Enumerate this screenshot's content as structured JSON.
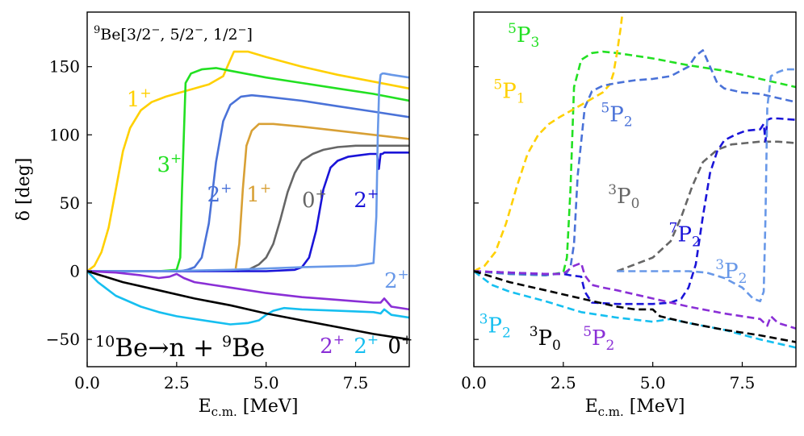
{
  "chart_data": [
    {
      "type": "line",
      "panel": "left",
      "title": "",
      "xlabel": "E",
      "xlabel_sub": "c.m.",
      "xlabel_unit": " [MeV]",
      "ylabel": "δ [deg]",
      "xlim": [
        0,
        9
      ],
      "ylim": [
        -70,
        190
      ],
      "xticks": [
        0,
        2.5,
        5,
        7.5
      ],
      "xtick_labels": [
        "0.0",
        "2.5",
        "5.0",
        "7.5"
      ],
      "yticks": [
        -50,
        0,
        50,
        100,
        150
      ],
      "ytick_labels": [
        "−50",
        "0",
        "50",
        "100",
        "150"
      ],
      "corner_text": {
        "sup": "9",
        "main": "Be[3/2",
        "rest": [
          "−",
          ", 5/2",
          "−",
          ", 1/2",
          "−",
          "]"
        ]
      },
      "reaction": {
        "pre_sup": "10",
        "pre": "Be",
        "arrow": "→",
        "mid": "n + ",
        "post_sup": "9",
        "post": "Be"
      },
      "series": [
        {
          "name": "1+ (yellow)",
          "label": "1",
          "label_sup": "+",
          "color": "#ffd000",
          "dash": false,
          "lx": 1.1,
          "ly": 121,
          "x": [
            0,
            0.2,
            0.4,
            0.6,
            0.8,
            1.0,
            1.2,
            1.5,
            1.8,
            2.2,
            2.6,
            3.0,
            3.4,
            3.8,
            3.95,
            4.1,
            4.5,
            5.0,
            6.0,
            7.0,
            8.0,
            9.0
          ],
          "y": [
            0,
            4,
            14,
            32,
            60,
            88,
            105,
            118,
            124,
            128,
            131,
            134,
            137,
            143,
            152,
            161,
            161,
            157,
            150,
            144,
            139,
            134
          ]
        },
        {
          "name": "3+ (green)",
          "label": "3",
          "label_sup": "+",
          "color": "#22e022",
          "dash": false,
          "lx": 1.95,
          "ly": 73,
          "x": [
            0,
            1.0,
            2.0,
            2.5,
            2.6,
            2.65,
            2.75,
            2.9,
            3.2,
            3.6,
            4.0,
            5.0,
            6.0,
            7.0,
            8.0,
            9.0
          ],
          "y": [
            0,
            0,
            0,
            1,
            10,
            60,
            138,
            145,
            148,
            149,
            147,
            142,
            138,
            134,
            130,
            125
          ]
        },
        {
          "name": "2+ (royal blue)",
          "label": "2",
          "label_sup": "+",
          "color": "#4a72d8",
          "dash": false,
          "lx": 3.35,
          "ly": 51,
          "x": [
            0,
            1.0,
            2.0,
            2.6,
            2.8,
            3.0,
            3.2,
            3.4,
            3.6,
            3.8,
            4.0,
            4.3,
            4.6,
            5.0,
            6.0,
            7.0,
            8.0,
            9.0
          ],
          "y": [
            0,
            0,
            0,
            0,
            1,
            3,
            10,
            35,
            80,
            110,
            122,
            128,
            129,
            128,
            125,
            121,
            117,
            113
          ]
        },
        {
          "name": "1+ (goldenrod)",
          "label": "1",
          "label_sup": "+",
          "color": "#d8a035",
          "dash": false,
          "lx": 4.45,
          "ly": 51,
          "x": [
            4.15,
            4.25,
            4.35,
            4.45,
            4.6,
            4.8,
            5.2,
            6.0,
            7.0,
            8.0,
            9.0
          ],
          "y": [
            2,
            20,
            60,
            92,
            103,
            108,
            108,
            106,
            103,
            100,
            97
          ]
        },
        {
          "name": "0+ (gray)",
          "label": "0",
          "label_sup": "+",
          "color": "#666666",
          "dash": false,
          "lx": 6.0,
          "ly": 47,
          "x": [
            4.2,
            4.5,
            4.8,
            5.0,
            5.2,
            5.4,
            5.6,
            5.8,
            6.0,
            6.3,
            6.6,
            7.0,
            7.5,
            8.0,
            8.5,
            9.0
          ],
          "y": [
            0,
            1,
            5,
            10,
            20,
            38,
            58,
            72,
            81,
            86,
            89,
            91,
            92,
            92,
            92,
            92
          ]
        },
        {
          "name": "2+ (blue)",
          "label": "2",
          "label_sup": "+",
          "color": "#1a14d8",
          "dash": false,
          "lx": 7.45,
          "ly": 47,
          "x": [
            0,
            2.0,
            4.0,
            5.0,
            5.8,
            6.0,
            6.2,
            6.4,
            6.6,
            6.8,
            7.0,
            7.3,
            7.6,
            7.9,
            8.1,
            8.15,
            8.2,
            8.25,
            8.3,
            8.5,
            9.0
          ],
          "y": [
            0,
            0,
            0,
            0,
            1,
            3,
            10,
            30,
            60,
            76,
            81,
            84,
            85,
            86,
            86,
            75,
            86,
            86,
            87,
            87,
            87
          ]
        },
        {
          "name": "2+ (light blue)",
          "label": "2",
          "label_sup": "+",
          "color": "#6898e8",
          "dash": false,
          "lx": 8.3,
          "ly": -12,
          "x": [
            0,
            2.0,
            4.0,
            6.0,
            7.5,
            8.0,
            8.08,
            8.12,
            8.16,
            8.2,
            8.25,
            8.3,
            8.5,
            9.0
          ],
          "y": [
            0,
            0,
            1,
            3,
            4,
            6,
            40,
            100,
            135,
            144,
            145,
            145,
            144,
            142
          ]
        },
        {
          "name": "2+ (purple)",
          "label": "2",
          "label_sup": "+",
          "color": "#8a2fd6",
          "dash": false,
          "lx": 6.5,
          "ly": -60,
          "x": [
            0,
            0.8,
            1.5,
            2.0,
            2.3,
            2.5,
            2.7,
            3.0,
            3.5,
            4.0,
            5.0,
            6.0,
            7.0,
            7.5,
            8.0,
            8.2,
            8.3,
            8.5,
            9.0
          ],
          "y": [
            0,
            -1,
            -3,
            -5,
            -4,
            -2,
            -5,
            -8,
            -10,
            -12,
            -16,
            -19,
            -21,
            -22,
            -23,
            -23,
            -20,
            -26,
            -28
          ]
        },
        {
          "name": "2+ (cyan)",
          "label": "2",
          "label_sup": "+",
          "color": "#16bff0",
          "dash": false,
          "lx": 7.45,
          "ly": -60,
          "x": [
            0,
            0.3,
            0.8,
            1.5,
            2.0,
            2.5,
            3.0,
            3.5,
            4.0,
            4.5,
            4.8,
            5.0,
            5.2,
            5.5,
            6.0,
            7.0,
            8.0,
            8.2,
            8.3,
            8.5,
            9.0
          ],
          "y": [
            0,
            -8,
            -18,
            -26,
            -30,
            -33,
            -35,
            -37,
            -39,
            -38,
            -36,
            -32,
            -29,
            -27,
            -28,
            -29,
            -30,
            -31,
            -28,
            -32,
            -34
          ]
        },
        {
          "name": "0+ (black)",
          "label": "0",
          "label_sup": "+",
          "color": "#000000",
          "dash": false,
          "lx": 8.4,
          "ly": -60,
          "x": [
            0,
            0.5,
            1.0,
            2.0,
            3.0,
            4.0,
            5.0,
            6.0,
            7.0,
            8.0,
            9.0
          ],
          "y": [
            0,
            -4,
            -8,
            -14,
            -20,
            -25,
            -31,
            -36,
            -41,
            -46,
            -50
          ]
        }
      ]
    },
    {
      "type": "line",
      "panel": "right",
      "title": "",
      "xlabel": "E",
      "xlabel_sub": "c.m.",
      "xlabel_unit": " [MeV]",
      "ylabel": "",
      "xlim": [
        0,
        9
      ],
      "ylim": [
        -70,
        190
      ],
      "xticks": [
        0,
        2.5,
        5,
        7.5
      ],
      "xtick_labels": [
        "0.0",
        "2.5",
        "5.0",
        "7.5"
      ],
      "yticks": [
        -50,
        0,
        50,
        100,
        150
      ],
      "series": [
        {
          "name": "5P3",
          "pre_sup": "5",
          "label": "P",
          "label_sub": "3",
          "color": "#22e022",
          "dash": true,
          "lx": 0.95,
          "ly": 168,
          "x": [
            0,
            1.0,
            2.0,
            2.5,
            2.6,
            2.7,
            2.8,
            3.0,
            3.3,
            3.6,
            4.0,
            5.0,
            6.0,
            7.0,
            8.0,
            9.0
          ],
          "y": [
            0,
            -2,
            -3,
            -1,
            10,
            60,
            135,
            155,
            160,
            161,
            160,
            156,
            151,
            147,
            141,
            135
          ]
        },
        {
          "name": "5P1",
          "pre_sup": "5",
          "label": "P",
          "label_sub": "1",
          "color": "#ffd000",
          "dash": true,
          "lx": 0.55,
          "ly": 127,
          "x": [
            0,
            0.3,
            0.6,
            0.9,
            1.2,
            1.5,
            1.8,
            2.1,
            2.4,
            2.8,
            3.2,
            3.6,
            3.8,
            3.9,
            4.0,
            4.1,
            4.2
          ],
          "y": [
            0,
            4,
            14,
            35,
            62,
            86,
            100,
            108,
            113,
            119,
            125,
            131,
            137,
            145,
            160,
            178,
            200
          ]
        },
        {
          "name": "5P2 (blue)",
          "pre_sup": "5",
          "label": "P",
          "label_sub": "2",
          "color": "#4a72d8",
          "dash": true,
          "lx": 3.55,
          "ly": 110,
          "x": [
            0,
            1.0,
            2.0,
            2.6,
            2.7,
            2.8,
            2.9,
            3.1,
            3.3,
            3.6,
            4.0,
            4.5,
            5.0,
            5.5,
            6.0,
            6.2,
            6.4,
            6.6,
            6.8,
            7.0,
            7.5,
            8.0,
            8.5,
            9.0
          ],
          "y": [
            0,
            -2,
            -3,
            -1,
            3,
            20,
            70,
            120,
            132,
            136,
            138,
            140,
            141,
            143,
            150,
            158,
            162,
            150,
            138,
            134,
            131,
            130,
            127,
            124
          ]
        },
        {
          "name": "3P0 (gray)",
          "pre_sup": "3",
          "label": "P",
          "label_sub": "0",
          "color": "#666666",
          "dash": true,
          "lx": 3.75,
          "ly": 50,
          "x": [
            4.0,
            4.5,
            5.0,
            5.5,
            5.8,
            6.1,
            6.4,
            6.8,
            7.2,
            7.6,
            8.0,
            8.5,
            9.0
          ],
          "y": [
            0,
            5,
            10,
            22,
            40,
            62,
            80,
            89,
            93,
            94,
            95,
            95,
            94
          ]
        },
        {
          "name": "7P2",
          "pre_sup": "7",
          "label": "P",
          "label_sub": "2",
          "color": "#1a14d8",
          "dash": true,
          "lx": 5.45,
          "ly": 22,
          "x": [
            0,
            1.0,
            2.0,
            2.5,
            2.7,
            3.0,
            3.1,
            3.3,
            4.0,
            5.0,
            5.5,
            5.8,
            6.0,
            6.2,
            6.4,
            6.6,
            6.8,
            7.0,
            7.3,
            7.6,
            8.0,
            8.1,
            8.15,
            8.2,
            8.3,
            8.5,
            9.0
          ],
          "y": [
            0,
            -1,
            -2,
            -2,
            -3,
            -4,
            -15,
            -23,
            -24,
            -24,
            -23,
            -20,
            -12,
            5,
            40,
            72,
            88,
            96,
            100,
            103,
            104,
            108,
            95,
            111,
            112,
            112,
            111
          ]
        },
        {
          "name": "3P2 (light blue)",
          "pre_sup": "3",
          "label": "P",
          "label_sub": "2",
          "color": "#6898e8",
          "dash": true,
          "lx": 6.75,
          "ly": -5,
          "x": [
            4.0,
            5.0,
            6.0,
            6.5,
            7.0,
            7.5,
            7.8,
            8.0,
            8.1,
            8.15,
            8.2,
            8.3,
            8.5,
            8.7,
            9.0
          ],
          "y": [
            0,
            0,
            0,
            -1,
            -5,
            -12,
            -20,
            -22,
            -15,
            40,
            120,
            143,
            146,
            148,
            148
          ]
        },
        {
          "name": "5P2 (purple)",
          "pre_sup": "5",
          "label": "P",
          "label_sub": "2",
          "color": "#8a2fd6",
          "dash": true,
          "lx": 3.05,
          "ly": -54,
          "x": [
            0,
            1.0,
            2.0,
            2.5,
            2.8,
            3.0,
            3.1,
            3.3,
            3.6,
            4.0,
            5.0,
            6.0,
            7.0,
            8.0,
            8.2,
            8.3,
            8.5,
            9.0
          ],
          "y": [
            0,
            -1,
            -2,
            -2,
            4,
            6,
            -3,
            -10,
            -12,
            -14,
            -20,
            -26,
            -31,
            -35,
            -40,
            -33,
            -38,
            -42
          ]
        },
        {
          "name": "3P2 (cyan)",
          "pre_sup": "3",
          "label": "P",
          "label_sub": "2",
          "color": "#16bff0",
          "dash": true,
          "lx": 0.15,
          "ly": -45,
          "x": [
            0,
            0.5,
            1.0,
            2.0,
            3.0,
            4.0,
            5.0,
            5.5,
            6.0,
            7.0,
            8.0,
            9.0
          ],
          "y": [
            0,
            -10,
            -15,
            -22,
            -30,
            -34,
            -37,
            -35,
            -38,
            -43,
            -50,
            -56
          ]
        },
        {
          "name": "3P0 (black)",
          "pre_sup": "3",
          "label": "P",
          "label_sub": "0",
          "color": "#000000",
          "dash": true,
          "lx": 1.55,
          "ly": -54,
          "x": [
            0,
            0.5,
            1.0,
            2.0,
            3.0,
            4.0,
            4.5,
            5.0,
            5.2,
            6.0,
            7.0,
            8.0,
            9.0
          ],
          "y": [
            0,
            -4,
            -8,
            -14,
            -20,
            -26,
            -28,
            -28,
            -33,
            -38,
            -43,
            -47,
            -52
          ]
        }
      ]
    }
  ]
}
